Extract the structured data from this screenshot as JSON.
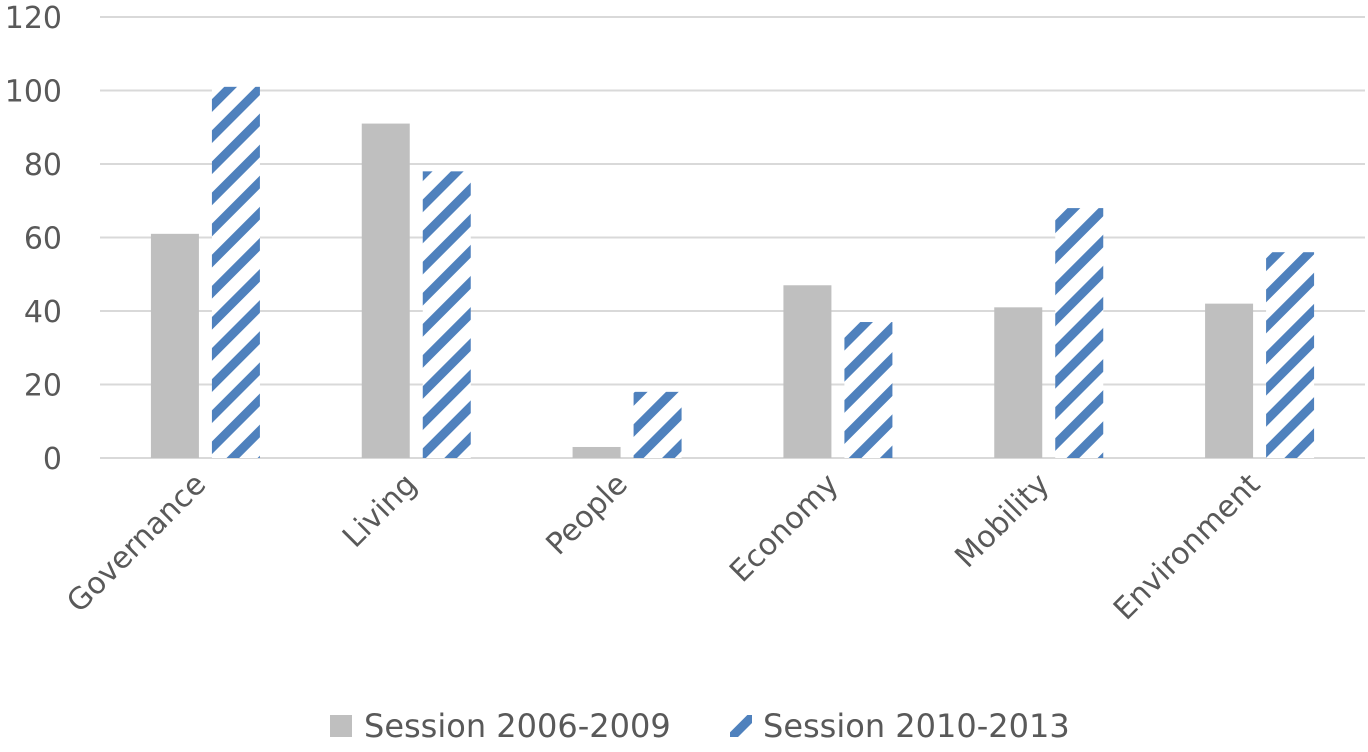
{
  "chart_data": {
    "type": "bar",
    "categories": [
      "Governance",
      "Living",
      "People",
      "Economy",
      "Mobility",
      "Environment"
    ],
    "series": [
      {
        "name": "Session 2006-2009",
        "values": [
          61,
          91,
          3,
          47,
          41,
          42
        ],
        "color": "#bfbfbf",
        "fill": "solid"
      },
      {
        "name": "Session 2010-2013",
        "values": [
          101,
          78,
          18,
          37,
          68,
          56
        ],
        "color": "#4f81bd",
        "fill": "diagonal-hatch"
      }
    ],
    "ylim": [
      0,
      120
    ],
    "yticks": [
      "0",
      "20",
      "40",
      "60",
      "80",
      "100",
      "120"
    ],
    "grid": true,
    "legend": "bottom-center"
  }
}
